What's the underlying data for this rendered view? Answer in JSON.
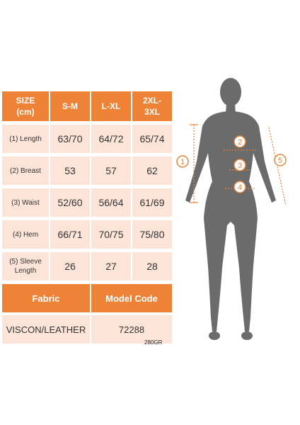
{
  "table": {
    "headers": [
      "SIZE\n(cm)",
      "S-M",
      "L-XL",
      "2XL-\n3XL"
    ],
    "rows": [
      {
        "label": "(1) Length",
        "values": [
          "63/70",
          "64/72",
          "65/74"
        ]
      },
      {
        "label": "(2) Breast",
        "values": [
          "53",
          "57",
          "62"
        ]
      },
      {
        "label": "(3) Waist",
        "values": [
          "52/60",
          "56/64",
          "61/69"
        ]
      },
      {
        "label": "(4) Hem",
        "values": [
          "66/71",
          "70/75",
          "75/80"
        ]
      },
      {
        "label": "(5) Sleeve\nLength",
        "values": [
          "26",
          "27",
          "28"
        ]
      }
    ]
  },
  "fabric": {
    "header_fabric": "Fabric",
    "header_model": "Model Code",
    "fabric_value": "VISCON/LEATHER",
    "model_value": "72288"
  },
  "weight": "280GR",
  "figure": {
    "markers": [
      "1",
      "2",
      "3",
      "4",
      "5"
    ],
    "marker_color": "#e8843a",
    "silhouette_color": "#6b6b6b"
  },
  "colors": {
    "header_orange": "#ee8236",
    "cell_pink": "#fde4d8"
  }
}
